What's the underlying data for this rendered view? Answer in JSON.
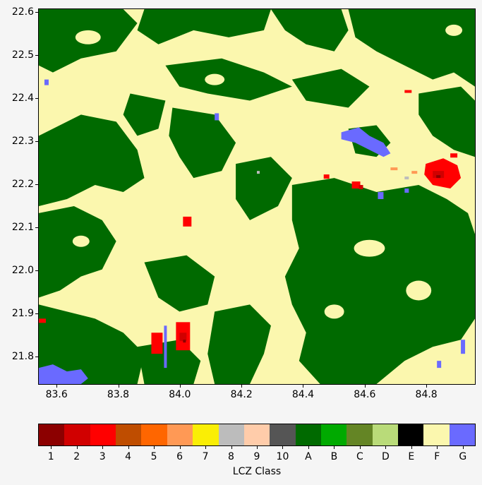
{
  "map": {
    "x_ticks": [
      "83.6",
      "83.8",
      "84.0",
      "84.2",
      "84.4",
      "84.6",
      "84.8"
    ],
    "y_ticks": [
      "22.6",
      "22.5",
      "22.4",
      "22.3",
      "22.2",
      "22.1",
      "22.0",
      "21.9",
      "21.8"
    ],
    "x_range": [
      83.54,
      84.96
    ],
    "y_range": [
      21.735,
      22.608
    ]
  },
  "legend": {
    "title": "LCZ Class",
    "classes": [
      {
        "label": "1",
        "color": "#8c0000"
      },
      {
        "label": "2",
        "color": "#d10000"
      },
      {
        "label": "3",
        "color": "#ff0000"
      },
      {
        "label": "4",
        "color": "#bf4d00"
      },
      {
        "label": "5",
        "color": "#ff6600"
      },
      {
        "label": "6",
        "color": "#ff9955"
      },
      {
        "label": "7",
        "color": "#faee05"
      },
      {
        "label": "8",
        "color": "#bcbcbc"
      },
      {
        "label": "9",
        "color": "#ffccaa"
      },
      {
        "label": "10",
        "color": "#555555"
      },
      {
        "label": "A",
        "color": "#006a00"
      },
      {
        "label": "B",
        "color": "#00aa00"
      },
      {
        "label": "C",
        "color": "#648525"
      },
      {
        "label": "D",
        "color": "#b9db79"
      },
      {
        "label": "E",
        "color": "#000000"
      },
      {
        "label": "F",
        "color": "#fbf7ae"
      },
      {
        "label": "G",
        "color": "#6a6aff"
      }
    ]
  }
}
